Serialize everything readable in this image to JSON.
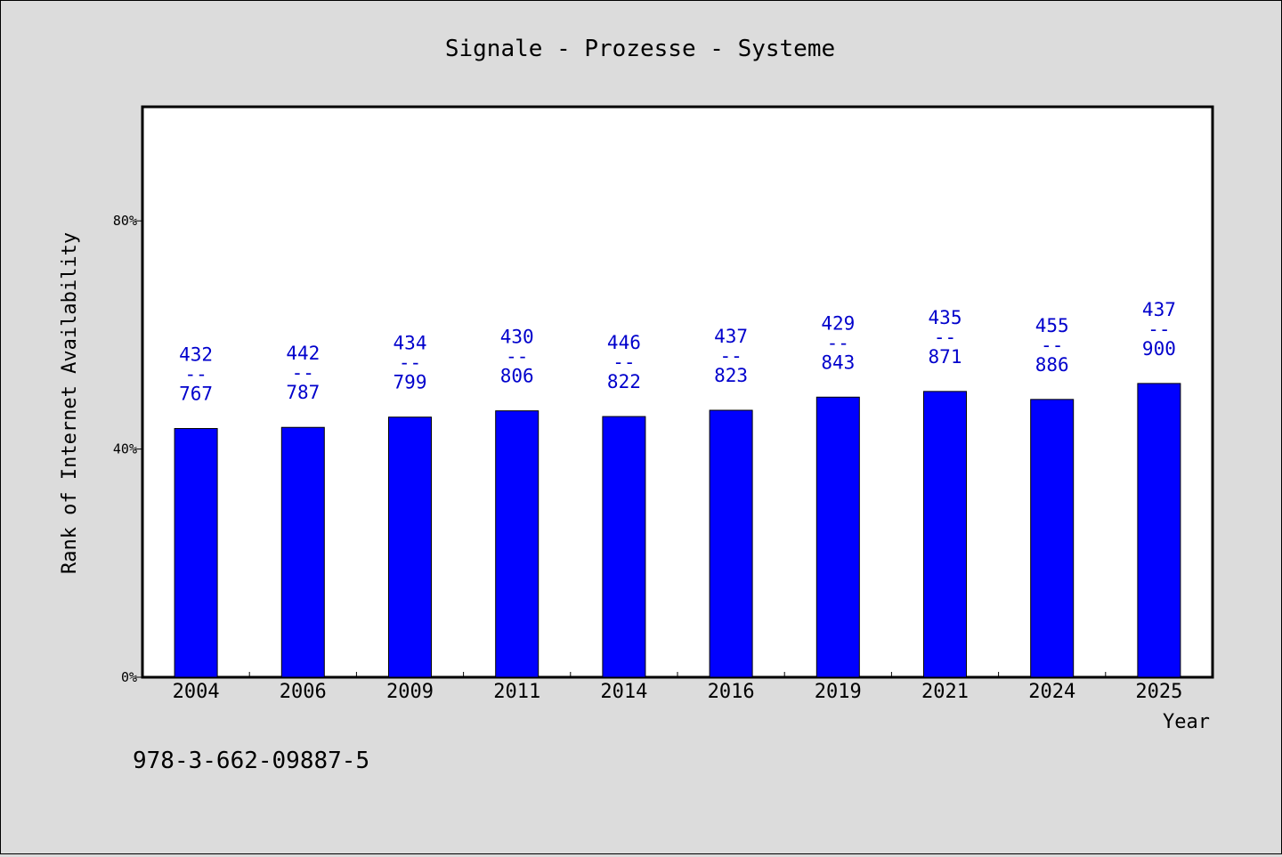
{
  "chart_data": {
    "type": "bar",
    "title": "Signale - Prozesse - Systeme",
    "xlabel": "Year",
    "ylabel": "Rank of Internet Availability",
    "footnote": "978-3-662-09887-5",
    "ylim": [
      0,
      100
    ],
    "y_ticks": [
      0,
      40,
      80
    ],
    "y_tick_labels": [
      "0%",
      "40%",
      "80%"
    ],
    "categories": [
      "2004",
      "2006",
      "2009",
      "2011",
      "2014",
      "2016",
      "2019",
      "2021",
      "2024",
      "2025"
    ],
    "values": [
      43.6,
      43.8,
      45.6,
      46.7,
      45.7,
      46.8,
      49.1,
      50.1,
      48.7,
      51.5
    ],
    "label_top": [
      "432",
      "442",
      "434",
      "430",
      "446",
      "437",
      "429",
      "435",
      "455",
      "437"
    ],
    "label_mid": [
      "--",
      "--",
      "--",
      "--",
      "--",
      "--",
      "--",
      "--",
      "--",
      "--"
    ],
    "label_bottom": [
      "767",
      "787",
      "799",
      "806",
      "822",
      "823",
      "843",
      "871",
      "886",
      "900"
    ],
    "grid": false,
    "colors": {
      "bar": "#0000ff",
      "label": "#0000cc",
      "plot_bg": "#ffffff",
      "page_bg": "#dcdcdc"
    }
  }
}
